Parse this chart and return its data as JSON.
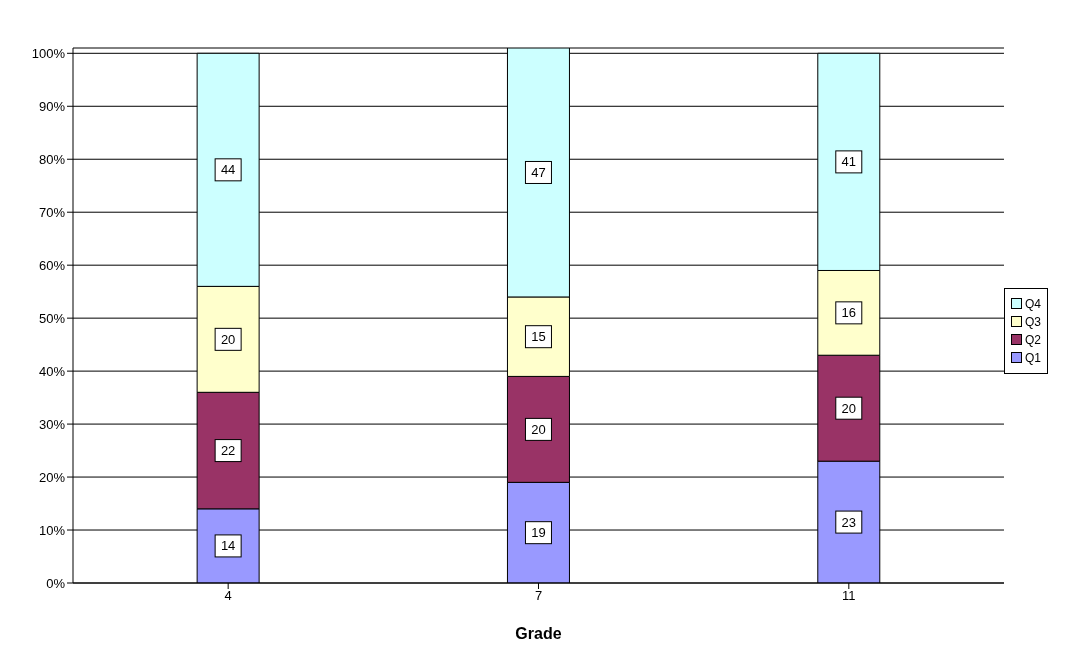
{
  "chart_data": {
    "type": "bar",
    "stacked": true,
    "xlabel": "Grade",
    "categories": [
      "4",
      "7",
      "11"
    ],
    "series": [
      {
        "name": "Q1",
        "color": "#9999ff",
        "values": [
          14,
          19,
          23
        ]
      },
      {
        "name": "Q2",
        "color": "#993366",
        "values": [
          22,
          20,
          20
        ]
      },
      {
        "name": "Q3",
        "color": "#ffffcc",
        "values": [
          20,
          15,
          16
        ]
      },
      {
        "name": "Q4",
        "color": "#ccffff",
        "values": [
          44,
          47,
          41
        ]
      }
    ],
    "ylim": [
      0,
      101
    ],
    "yticks": [
      {
        "value": 0,
        "label": "0%"
      },
      {
        "value": 10,
        "label": "10%"
      },
      {
        "value": 20,
        "label": "20%"
      },
      {
        "value": 30,
        "label": "30%"
      },
      {
        "value": 40,
        "label": "40%"
      },
      {
        "value": 50,
        "label": "50%"
      },
      {
        "value": 60,
        "label": "60%"
      },
      {
        "value": 70,
        "label": "70%"
      },
      {
        "value": 80,
        "label": "80%"
      },
      {
        "value": 90,
        "label": "90%"
      },
      {
        "value": 100,
        "label": "100%"
      }
    ],
    "grid": "y",
    "legend": "right",
    "data_labels": true
  }
}
